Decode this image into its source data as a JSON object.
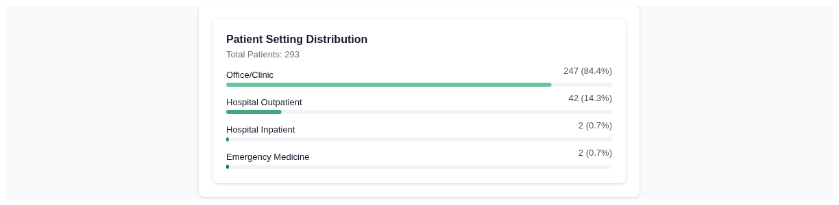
{
  "chart_data": {
    "type": "bar",
    "orientation": "horizontal",
    "title": "Patient Setting Distribution",
    "subtitle": "Total Patients: 293",
    "categories": [
      "Office/Clinic",
      "Hospital Outpatient",
      "Hospital Inpatient",
      "Emergency Medicine"
    ],
    "values": [
      247,
      42,
      2,
      2
    ],
    "value_labels": [
      "247 (84.4%)",
      "42 (14.3%)",
      "2 (0.7%)",
      "2 (0.7%)"
    ],
    "colors": [
      "#6cc59b",
      "#3fa97c",
      "#1a8c5f",
      "#0c6e4b"
    ],
    "xlim": [
      0,
      293
    ]
  }
}
